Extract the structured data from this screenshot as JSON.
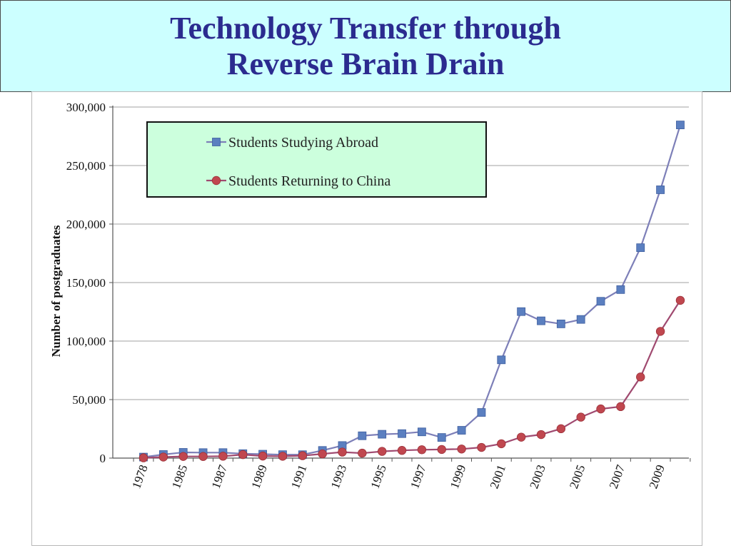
{
  "title": {
    "line1": "Technology Transfer through",
    "line2": "Reverse Brain Drain"
  },
  "chart_data": {
    "type": "line",
    "title": "",
    "xlabel": "",
    "ylabel": "Number of postgraduates",
    "ylim": [
      0,
      300000
    ],
    "y_ticks": [
      0,
      50000,
      100000,
      150000,
      200000,
      250000,
      300000
    ],
    "y_tick_labels": [
      "0",
      "50,000",
      "100,000",
      "150,000",
      "200,000",
      "250,000",
      "300,000"
    ],
    "x_tick_labels": [
      "1978",
      "1985",
      "1987",
      "1989",
      "1991",
      "1993",
      "1995",
      "1997",
      "1999",
      "2001",
      "2003",
      "2005",
      "2007",
      "2009"
    ],
    "categories": [
      "1978",
      "1984",
      "1985",
      "1986",
      "1987",
      "1988",
      "1989",
      "1990",
      "1991",
      "1992",
      "1993",
      "1994",
      "1995",
      "1996",
      "1997",
      "1998",
      "1999",
      "2000",
      "2001",
      "2002",
      "2003",
      "2004",
      "2005",
      "2006",
      "2007",
      "2008",
      "2009",
      "2010"
    ],
    "grid": true,
    "legend_position": "top-left",
    "series": [
      {
        "name": "Students Studying Abroad",
        "color": "#5b7fc0",
        "line_color": "#7d7fb8",
        "marker": "square",
        "values": [
          860,
          3070,
          4890,
          4680,
          4700,
          3790,
          3330,
          2950,
          2900,
          6540,
          10740,
          19070,
          20380,
          20910,
          22410,
          17620,
          23750,
          38990,
          83970,
          125180,
          117300,
          114700,
          118500,
          134000,
          144000,
          179800,
          229300,
          284700
        ]
      },
      {
        "name": "Students Returning to China",
        "color": "#c0474f",
        "line_color": "#a04a70",
        "marker": "circle",
        "values": [
          250,
          900,
          1420,
          1390,
          1610,
          3000,
          1750,
          1590,
          2070,
          3610,
          5130,
          4230,
          5750,
          6570,
          7130,
          7380,
          7750,
          9120,
          12240,
          17900,
          20100,
          25100,
          35000,
          42000,
          44000,
          69300,
          108300,
          134800
        ]
      }
    ]
  }
}
